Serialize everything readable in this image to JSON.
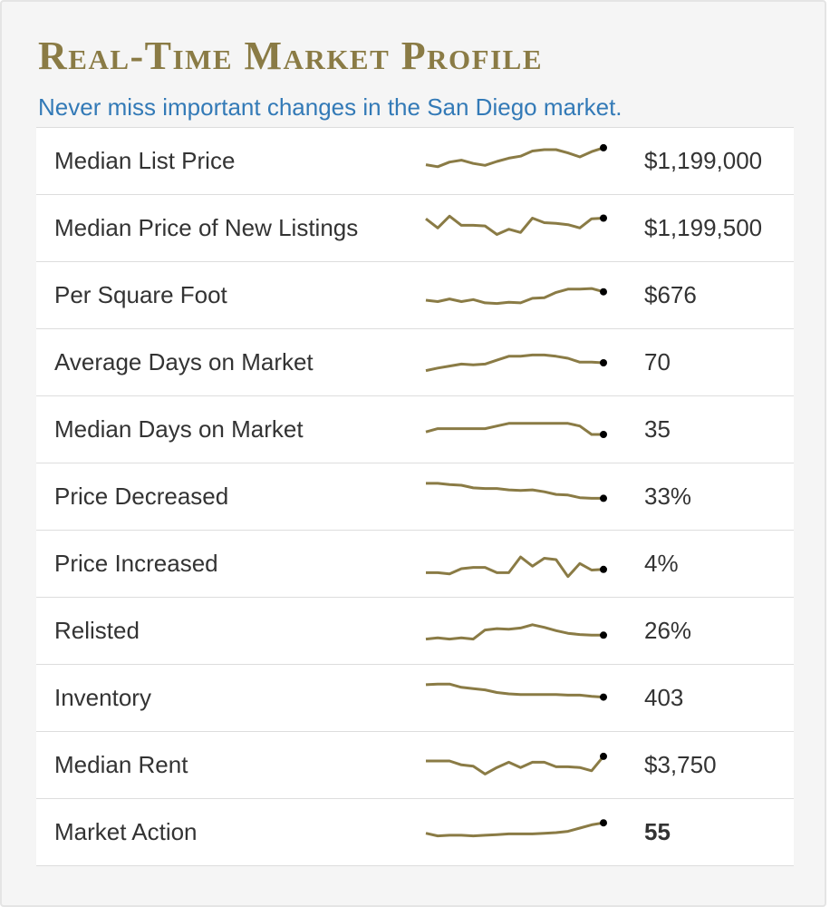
{
  "header": {
    "title": "Real-Time Market Profile",
    "subtitle": "Never miss important changes in the San Diego market."
  },
  "colors": {
    "title": "#8a7b45",
    "subtitle": "#337ab7",
    "sparkline": "#8a7b45",
    "endpoint": "#000000"
  },
  "metrics": [
    {
      "label": "Median List Price",
      "value": "$1,199,000",
      "bold": false,
      "trend": [
        20,
        17,
        24,
        27,
        22,
        19,
        25,
        30,
        33,
        41,
        43,
        43,
        38,
        32,
        40,
        46
      ]
    },
    {
      "label": "Median Price of New Listings",
      "value": "$1,199,500",
      "bold": false,
      "trend": [
        40,
        26,
        44,
        30,
        30,
        29,
        16,
        24,
        19,
        41,
        34,
        33,
        31,
        26,
        40,
        41
      ]
    },
    {
      "label": "Per Square Foot",
      "value": "$676",
      "bold": false,
      "trend": [
        18,
        16,
        20,
        16,
        19,
        14,
        13,
        15,
        14,
        21,
        22,
        30,
        35,
        35,
        36,
        31
      ]
    },
    {
      "label": "Average Days on Market",
      "value": "70",
      "bold": false,
      "trend": [
        13,
        17,
        20,
        23,
        22,
        23,
        29,
        35,
        35,
        37,
        37,
        35,
        32,
        26,
        26,
        25
      ]
    },
    {
      "label": "Median Days on Market",
      "value": "35",
      "bold": false,
      "trend": [
        22,
        27,
        27,
        27,
        27,
        27,
        31,
        35,
        35,
        35,
        35,
        35,
        35,
        31,
        18,
        18
      ]
    },
    {
      "label": "Price Decreased",
      "value": "33%",
      "bold": false,
      "trend": [
        46,
        46,
        44,
        43,
        39,
        38,
        38,
        36,
        35,
        36,
        33,
        29,
        28,
        24,
        23,
        23
      ]
    },
    {
      "label": "Price Increased",
      "value": "4%",
      "bold": false,
      "trend": [
        12,
        12,
        10,
        18,
        20,
        20,
        12,
        12,
        36,
        22,
        34,
        32,
        6,
        26,
        16,
        17
      ]
    },
    {
      "label": "Relisted",
      "value": "26%",
      "bold": false,
      "trend": [
        13,
        15,
        13,
        15,
        13,
        27,
        29,
        28,
        30,
        35,
        31,
        26,
        22,
        20,
        19,
        19
      ]
    },
    {
      "label": "Inventory",
      "value": "403",
      "bold": false,
      "trend": [
        46,
        47,
        47,
        42,
        40,
        38,
        34,
        32,
        31,
        31,
        31,
        31,
        30,
        30,
        28,
        27
      ]
    },
    {
      "label": "Median Rent",
      "value": "$3,750",
      "bold": false,
      "trend": [
        32,
        32,
        32,
        26,
        24,
        12,
        22,
        30,
        22,
        30,
        30,
        23,
        23,
        22,
        17,
        39
      ]
    },
    {
      "label": "Market Action",
      "value": "55",
      "bold": true,
      "trend": [
        24,
        20,
        21,
        21,
        20,
        21,
        22,
        23,
        23,
        23,
        24,
        25,
        27,
        32,
        37,
        40
      ]
    }
  ]
}
